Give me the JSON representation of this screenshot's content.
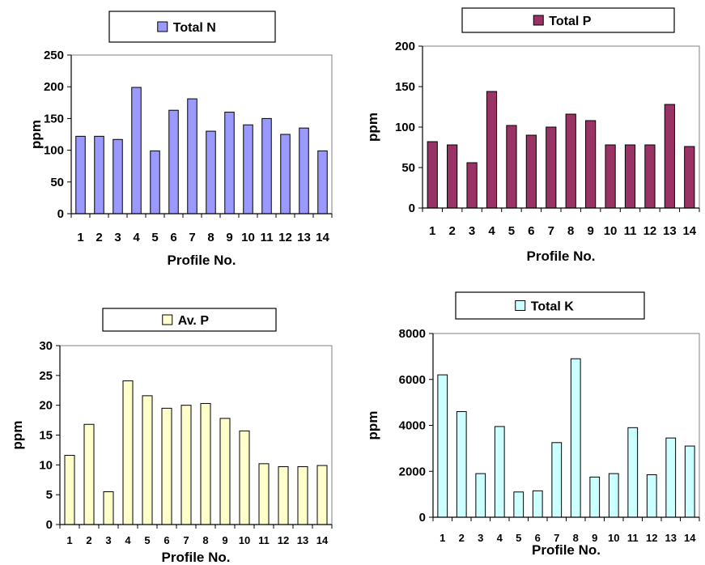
{
  "chart_data": [
    {
      "type": "bar",
      "legend": "Total N",
      "color": "#9999ff",
      "xlabel": "Profile No.",
      "ylabel": "ppm",
      "categories": [
        "1",
        "2",
        "3",
        "4",
        "5",
        "6",
        "7",
        "8",
        "9",
        "10",
        "11",
        "12",
        "13",
        "14"
      ],
      "values": [
        122,
        122,
        117,
        199,
        99,
        163,
        181,
        130,
        160,
        140,
        150,
        125,
        135,
        99
      ],
      "ylim": [
        0,
        250
      ],
      "yticks": [
        "0",
        "50",
        "100",
        "150",
        "200",
        "250"
      ],
      "grid": false,
      "legend_position": "top"
    },
    {
      "type": "bar",
      "legend": "Total P",
      "color": "#993366",
      "xlabel": "Profile No.",
      "ylabel": "ppm",
      "categories": [
        "1",
        "2",
        "3",
        "4",
        "5",
        "6",
        "7",
        "8",
        "9",
        "10",
        "11",
        "12",
        "13",
        "14"
      ],
      "values": [
        82,
        78,
        56,
        144,
        102,
        90,
        100,
        116,
        108,
        78,
        78,
        78,
        128,
        76
      ],
      "ylim": [
        0,
        200
      ],
      "yticks": [
        "0",
        "50",
        "100",
        "150",
        "200"
      ],
      "grid": false,
      "legend_position": "top"
    },
    {
      "type": "bar",
      "legend": "Av. P",
      "color": "#ffffcc",
      "xlabel": "Profile No.",
      "ylabel": "ppm",
      "categories": [
        "1",
        "2",
        "3",
        "4",
        "5",
        "6",
        "7",
        "8",
        "9",
        "10",
        "11",
        "12",
        "13",
        "14"
      ],
      "values": [
        11.6,
        16.8,
        5.5,
        24.1,
        21.6,
        19.5,
        20.0,
        20.3,
        17.8,
        15.7,
        10.2,
        9.7,
        9.7,
        9.9
      ],
      "ylim": [
        0,
        30
      ],
      "yticks": [
        "0",
        "5",
        "10",
        "15",
        "20",
        "25",
        "30"
      ],
      "grid": false,
      "legend_position": "top"
    },
    {
      "type": "bar",
      "legend": "Total K",
      "color": "#ccffff",
      "xlabel": "Profile No.",
      "ylabel": "ppm",
      "categories": [
        "1",
        "2",
        "3",
        "4",
        "5",
        "6",
        "7",
        "8",
        "9",
        "10",
        "11",
        "12",
        "13",
        "14"
      ],
      "values": [
        6200,
        4600,
        1900,
        3950,
        1100,
        1150,
        3250,
        6900,
        1750,
        1900,
        3900,
        1850,
        3450,
        3100
      ],
      "ylim": [
        0,
        8000
      ],
      "yticks": [
        "0",
        "2000",
        "4000",
        "6000",
        "8000"
      ],
      "grid": false,
      "legend_position": "top"
    }
  ]
}
